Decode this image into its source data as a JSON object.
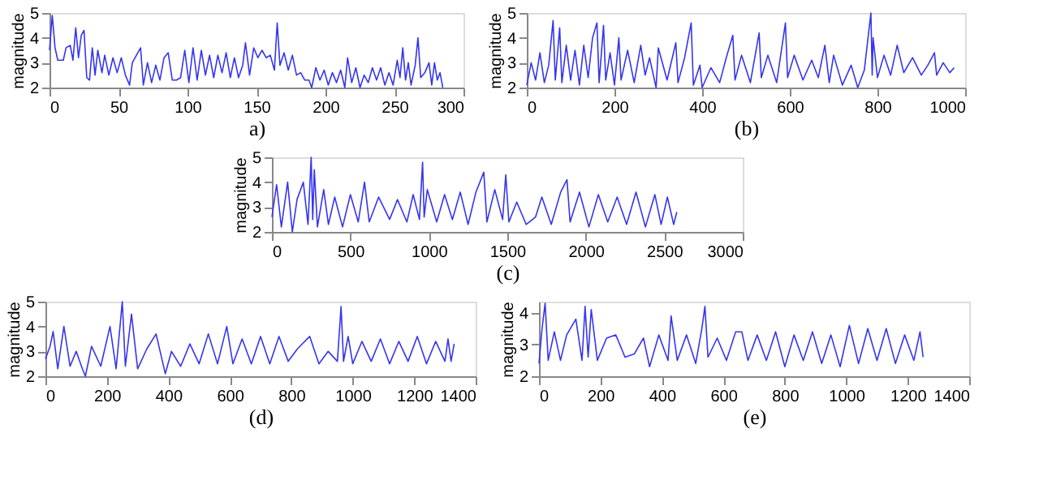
{
  "chart_data": [
    {
      "type": "line",
      "xlabel": "a)",
      "ylabel": "magnitude",
      "xlim": [
        0,
        300
      ],
      "xticks": [
        0,
        50,
        100,
        150,
        200,
        250,
        300
      ],
      "ylim": [
        2,
        5
      ],
      "yticks": [
        2,
        3,
        4,
        5
      ],
      "grid": false,
      "x": [
        0,
        2,
        4,
        6,
        10,
        12,
        15,
        17,
        19,
        21,
        23,
        25,
        27,
        29,
        31,
        33,
        35,
        38,
        40,
        43,
        46,
        49,
        52,
        55,
        58,
        60,
        63,
        66,
        68,
        71,
        74,
        77,
        80,
        83,
        86,
        89,
        92,
        95,
        98,
        101,
        104,
        107,
        110,
        113,
        116,
        119,
        122,
        125,
        128,
        131,
        134,
        137,
        140,
        142,
        145,
        148,
        151,
        154,
        157,
        160,
        163,
        165,
        167,
        170,
        173,
        176,
        179,
        182,
        185,
        188,
        190,
        193,
        196,
        199,
        202,
        205,
        208,
        211,
        214,
        216,
        219,
        222,
        225,
        228,
        231,
        234,
        237,
        240,
        243,
        246,
        249,
        252,
        254,
        256,
        258,
        260,
        262,
        265,
        267,
        269,
        272,
        275,
        277,
        279,
        281,
        283,
        285
      ],
      "series": [
        {
          "color": "#3535f0",
          "values": [
            3.5,
            4.9,
            3.6,
            3.1,
            3.1,
            3.6,
            3.7,
            3.1,
            4.4,
            3.2,
            4.1,
            4.3,
            2.4,
            2.3,
            3.6,
            2.5,
            3.5,
            2.6,
            3.3,
            2.5,
            3.2,
            2.6,
            3.2,
            2.5,
            2.1,
            3.0,
            3.3,
            3.6,
            2.1,
            3.0,
            2.2,
            2.9,
            2.3,
            3.2,
            3.4,
            2.3,
            2.3,
            2.4,
            3.5,
            2.2,
            3.6,
            2.3,
            3.5,
            2.5,
            3.3,
            2.4,
            3.3,
            2.6,
            3.4,
            2.4,
            3.2,
            2.4,
            2.9,
            3.8,
            2.5,
            3.6,
            3.2,
            3.5,
            3.2,
            3.3,
            2.7,
            4.6,
            2.9,
            3.4,
            2.7,
            3.3,
            2.5,
            2.6,
            2.3,
            2.3,
            2.0,
            2.8,
            2.3,
            2.7,
            2.1,
            2.6,
            2.2,
            2.7,
            2.0,
            3.2,
            2.2,
            2.8,
            2.0,
            2.5,
            2.2,
            2.8,
            2.3,
            2.8,
            2.1,
            2.6,
            2.1,
            3.1,
            2.4,
            3.6,
            2.3,
            3.0,
            2.1,
            2.9,
            4.0,
            2.4,
            2.6,
            3.0,
            2.1,
            3.0,
            2.3,
            2.6,
            2.0
          ]
        }
      ]
    },
    {
      "type": "line",
      "xlabel": "(b)",
      "ylabel": "magnitude",
      "xlim": [
        0,
        1000
      ],
      "xticks": [
        0,
        200,
        400,
        600,
        800,
        1000
      ],
      "ylim": [
        2,
        5
      ],
      "yticks": [
        2,
        3,
        4,
        5
      ],
      "grid": false,
      "x": [
        0,
        10,
        20,
        30,
        40,
        50,
        60,
        65,
        75,
        80,
        90,
        100,
        110,
        120,
        130,
        140,
        150,
        160,
        165,
        175,
        180,
        190,
        200,
        210,
        215,
        230,
        245,
        260,
        270,
        280,
        295,
        300,
        320,
        340,
        345,
        360,
        375,
        380,
        395,
        400,
        420,
        440,
        455,
        470,
        475,
        490,
        510,
        530,
        535,
        550,
        570,
        590,
        595,
        610,
        630,
        650,
        665,
        680,
        690,
        700,
        720,
        740,
        755,
        770,
        785,
        788,
        790,
        800,
        815,
        830,
        845,
        860,
        880,
        900,
        915,
        930,
        935,
        950,
        965,
        975
      ],
      "series": [
        {
          "color": "#3535f0",
          "values": [
            2.1,
            3.0,
            2.3,
            3.4,
            2.2,
            2.9,
            4.7,
            2.3,
            4.4,
            2.2,
            3.7,
            2.3,
            3.5,
            2.1,
            3.7,
            2.4,
            4.0,
            4.6,
            2.2,
            4.5,
            2.3,
            3.4,
            2.1,
            4.0,
            2.3,
            3.5,
            2.2,
            3.7,
            2.5,
            3.2,
            2.0,
            3.6,
            2.3,
            3.8,
            2.2,
            3.2,
            4.6,
            2.1,
            2.9,
            2.0,
            2.8,
            2.2,
            3.2,
            4.1,
            2.3,
            3.3,
            2.2,
            4.2,
            2.4,
            3.3,
            2.2,
            4.6,
            2.4,
            3.3,
            2.3,
            3.1,
            2.4,
            3.7,
            2.2,
            3.3,
            2.1,
            2.9,
            2.0,
            2.7,
            5.0,
            2.5,
            4.0,
            2.4,
            3.3,
            2.5,
            3.7,
            2.6,
            3.2,
            2.5,
            2.9,
            3.4,
            2.5,
            3.0,
            2.6,
            2.8
          ]
        }
      ]
    },
    {
      "type": "line",
      "xlabel": "(c)",
      "ylabel": "magnitude",
      "xlim": [
        0,
        3000
      ],
      "xticks": [
        0,
        500,
        1000,
        1500,
        2000,
        2500,
        3000
      ],
      "ylim": [
        2,
        5
      ],
      "yticks": [
        2,
        3,
        4,
        5
      ],
      "grid": false,
      "x": [
        0,
        30,
        60,
        100,
        130,
        160,
        200,
        230,
        250,
        260,
        270,
        290,
        330,
        360,
        400,
        450,
        500,
        550,
        590,
        620,
        680,
        750,
        800,
        860,
        900,
        940,
        960,
        970,
        990,
        1050,
        1100,
        1150,
        1200,
        1250,
        1300,
        1350,
        1370,
        1420,
        1470,
        1490,
        1510,
        1560,
        1620,
        1680,
        1720,
        1780,
        1840,
        1880,
        1900,
        1960,
        2020,
        2080,
        2140,
        2200,
        2260,
        2320,
        2380,
        2440,
        2480,
        2520,
        2560,
        2580
      ],
      "series": [
        {
          "color": "#3535f0",
          "values": [
            2.6,
            3.9,
            2.2,
            4.0,
            2.0,
            3.3,
            4.0,
            2.3,
            5.0,
            2.5,
            4.5,
            2.2,
            3.7,
            2.3,
            3.4,
            2.2,
            3.5,
            2.4,
            4.0,
            2.4,
            3.4,
            2.5,
            3.3,
            2.4,
            3.5,
            2.5,
            4.8,
            2.6,
            3.7,
            2.4,
            3.5,
            2.5,
            3.6,
            2.3,
            3.6,
            4.4,
            2.4,
            3.7,
            2.5,
            4.3,
            2.4,
            3.2,
            2.3,
            2.6,
            3.4,
            2.3,
            3.6,
            4.1,
            2.4,
            3.6,
            2.2,
            3.5,
            2.4,
            3.4,
            2.3,
            3.6,
            2.2,
            3.5,
            2.3,
            3.4,
            2.3,
            2.8
          ]
        }
      ]
    },
    {
      "type": "line",
      "xlabel": "(d)",
      "ylabel": "magnitude",
      "xlim": [
        0,
        1400
      ],
      "xticks": [
        0,
        200,
        400,
        600,
        800,
        1000,
        1200,
        1400
      ],
      "ylim": [
        2,
        5
      ],
      "yticks": [
        2,
        3,
        4,
        5
      ],
      "grid": false,
      "x": [
        0,
        15,
        25,
        40,
        60,
        80,
        100,
        120,
        130,
        150,
        180,
        210,
        230,
        250,
        260,
        280,
        300,
        330,
        360,
        390,
        410,
        440,
        470,
        500,
        530,
        560,
        590,
        610,
        640,
        670,
        700,
        730,
        760,
        790,
        820,
        860,
        890,
        920,
        950,
        962,
        970,
        985,
        1000,
        1030,
        1060,
        1090,
        1120,
        1150,
        1180,
        1210,
        1240,
        1270,
        1300,
        1310,
        1320,
        1330
      ],
      "series": [
        {
          "color": "#3535f0",
          "values": [
            2.7,
            3.2,
            3.8,
            2.3,
            4.0,
            2.4,
            3.0,
            2.3,
            2.0,
            3.2,
            2.4,
            4.0,
            2.3,
            5.0,
            2.4,
            4.5,
            2.3,
            3.1,
            3.7,
            2.1,
            3.0,
            2.4,
            3.3,
            2.5,
            3.7,
            2.5,
            4.0,
            2.5,
            3.5,
            2.5,
            3.6,
            2.5,
            3.6,
            2.6,
            3.1,
            3.6,
            2.5,
            3.0,
            2.6,
            4.8,
            2.6,
            3.6,
            2.5,
            3.4,
            2.6,
            3.5,
            2.5,
            3.4,
            2.6,
            3.6,
            2.5,
            3.4,
            2.6,
            3.5,
            2.6,
            3.3
          ]
        }
      ]
    },
    {
      "type": "line",
      "xlabel": "(e)",
      "ylabel": "magnitude",
      "xlim": [
        0,
        1400
      ],
      "xticks": [
        0,
        200,
        400,
        600,
        800,
        1000,
        1200,
        1400
      ],
      "ylim": [
        2,
        4.35
      ],
      "yticks": [
        2,
        3,
        4
      ],
      "grid": false,
      "x": [
        0,
        10,
        20,
        30,
        50,
        70,
        90,
        120,
        140,
        150,
        160,
        170,
        190,
        220,
        250,
        280,
        310,
        340,
        360,
        390,
        420,
        430,
        450,
        480,
        510,
        530,
        540,
        550,
        580,
        610,
        640,
        660,
        680,
        710,
        740,
        770,
        800,
        830,
        860,
        890,
        920,
        950,
        980,
        1010,
        1040,
        1070,
        1100,
        1130,
        1160,
        1190,
        1220,
        1240,
        1250
      ],
      "series": [
        {
          "color": "#3535f0",
          "values": [
            2.4,
            3.5,
            4.3,
            2.5,
            3.4,
            2.5,
            3.3,
            3.8,
            2.5,
            4.2,
            2.6,
            4.1,
            2.5,
            3.2,
            3.3,
            2.6,
            2.7,
            3.2,
            2.3,
            3.3,
            2.5,
            3.9,
            2.5,
            3.3,
            2.4,
            3.5,
            4.2,
            2.6,
            3.2,
            2.5,
            3.4,
            3.4,
            2.5,
            3.3,
            2.5,
            3.4,
            2.3,
            3.3,
            2.5,
            3.4,
            2.4,
            3.3,
            2.3,
            3.6,
            2.4,
            3.5,
            2.5,
            3.5,
            2.4,
            3.3,
            2.5,
            3.4,
            2.6
          ]
        }
      ]
    }
  ]
}
